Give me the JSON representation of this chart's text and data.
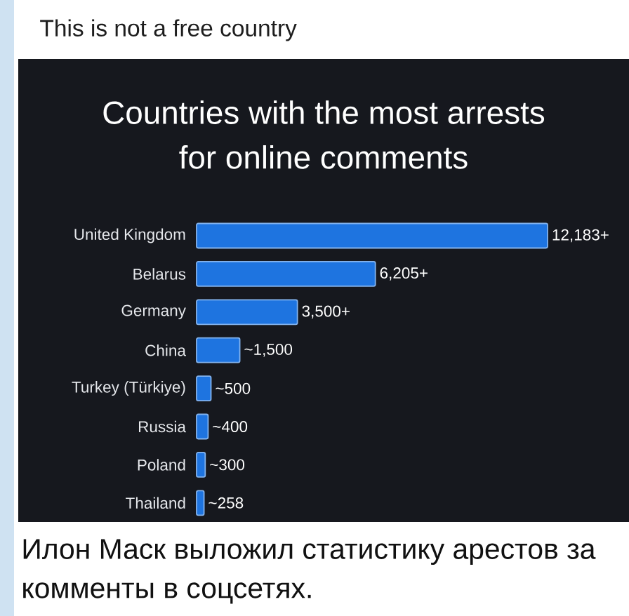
{
  "chart_data": {
    "type": "bar",
    "orientation": "horizontal",
    "title": "Countries with the most arrests for online comments",
    "categories": [
      "United Kingdom",
      "Belarus",
      "Germany",
      "China",
      "Turkey (Türkiye)",
      "Russia",
      "Poland",
      "Thailand"
    ],
    "values": [
      12183,
      6205,
      3500,
      1500,
      500,
      400,
      300,
      258
    ],
    "value_labels": [
      "12,183+",
      "6,205+",
      "3,500+",
      "~1,500",
      "~500",
      "~400",
      "~300",
      "~258"
    ],
    "color": "#1e74e0",
    "annotations": [
      "This is not a free country",
      "Илон Маск выложил статистику арестов за комменты в соцсетях."
    ]
  }
}
